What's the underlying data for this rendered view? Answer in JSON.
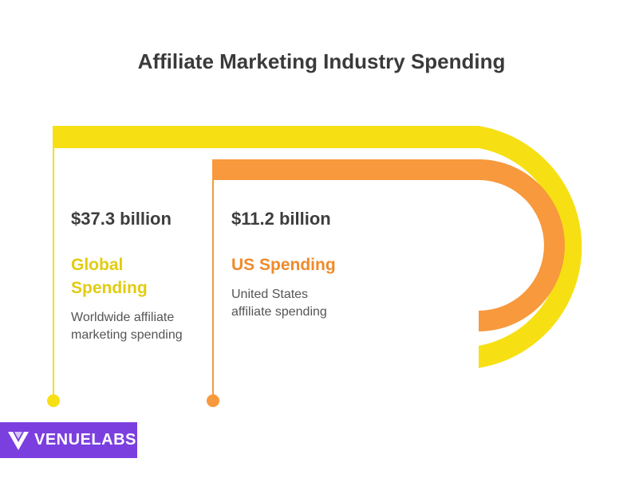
{
  "title": "Affiliate Marketing Industry Spending",
  "colors": {
    "global": "#f6e013",
    "us": "#f7993c",
    "title_text": "#3a3a3a",
    "logo_bg": "#7b3fe0"
  },
  "items": [
    {
      "value": "$37.3 billion",
      "heading_line1": "Global",
      "heading_line2": "Spending",
      "desc_line1": "Worldwide affiliate",
      "desc_line2": "marketing spending"
    },
    {
      "value": "$11.2 billion",
      "heading_line1": "US Spending",
      "heading_line2": "",
      "desc_line1": "United States",
      "desc_line2": "affiliate spending"
    }
  ],
  "logo": {
    "text": "VENUELABS",
    "icon": "v-chevron-icon"
  }
}
